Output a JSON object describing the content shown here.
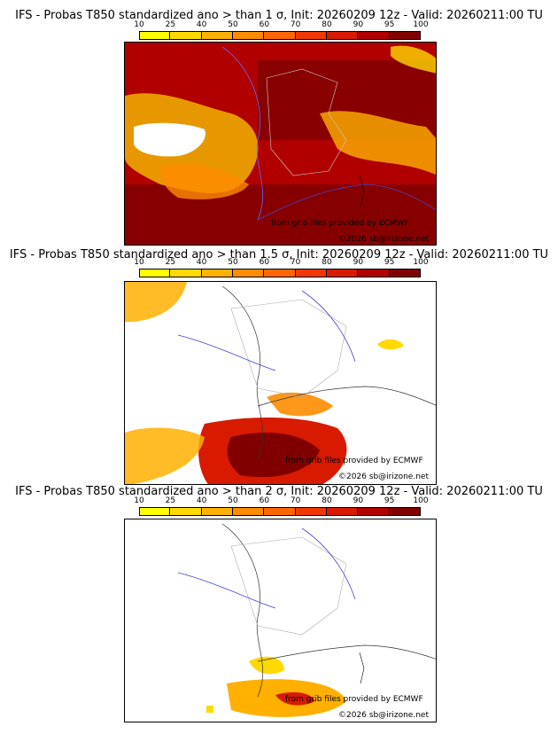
{
  "legend": {
    "ticks": [
      "10",
      "25",
      "40",
      "50",
      "60",
      "70",
      "80",
      "90",
      "95",
      "100"
    ],
    "colors": [
      "#ffff00",
      "#ffd900",
      "#ffb000",
      "#ff8c00",
      "#ff6600",
      "#f03800",
      "#d81a00",
      "#b00000",
      "#800000"
    ]
  },
  "panels": [
    {
      "title": "IFS - Probas T850  standardized ano > than 1 σ, Init: 20260209 12z - Valid: 20260211:00 TU"
    },
    {
      "title": "IFS - Probas T850  standardized ano > than 1.5 σ, Init: 20260209 12z - Valid: 20260211:00 TU"
    },
    {
      "title": "IFS - Probas T850  standardized ano > than 2 σ, Init: 20260209 12z - Valid: 20260211:00 TU"
    }
  ],
  "credits": {
    "source": "from grib files provided by ECMWF",
    "copyright": "©2026 sb@irizone.net"
  }
}
